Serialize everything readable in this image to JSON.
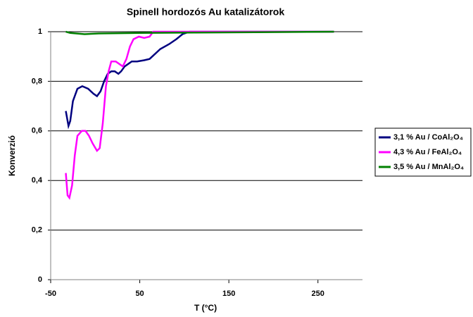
{
  "chart_data": {
    "type": "line",
    "title": "Spinell hordozós Au katalizátorok",
    "xlabel": "T (°C)",
    "ylabel": "Konverzió",
    "xlim": [
      -50,
      300
    ],
    "xticks": [
      -50,
      50,
      150,
      250
    ],
    "ylim": [
      0,
      1
    ],
    "yticks": [
      0,
      {
        "value": 0.2,
        "label": "0,2"
      },
      {
        "value": 0.4,
        "label": "0,4"
      },
      {
        "value": 0.6,
        "label": "0,6"
      },
      {
        "value": 0.8,
        "label": "0,8"
      },
      1
    ],
    "grid": true,
    "legend": "right",
    "series": [
      {
        "name": "3,1 % Au / CoAl₂O₄",
        "color": "#000080",
        "x": [
          -33,
          -30,
          -28,
          -25,
          -20,
          -14.5,
          -8,
          -2,
          2,
          6,
          10,
          14,
          18,
          22,
          26,
          29,
          33,
          37,
          41,
          47,
          55,
          61,
          67,
          73,
          83,
          91,
          98,
          106,
          130,
          209,
          268
        ],
        "values": [
          0.68,
          0.62,
          0.64,
          0.72,
          0.77,
          0.78,
          0.77,
          0.75,
          0.74,
          0.76,
          0.8,
          0.83,
          0.84,
          0.84,
          0.83,
          0.84,
          0.86,
          0.87,
          0.88,
          0.88,
          0.885,
          0.89,
          0.91,
          0.93,
          0.95,
          0.97,
          0.99,
          1.0,
          1.0,
          1.0,
          1.0
        ]
      },
      {
        "name": "4,3 % Au / FeAl₂O₄",
        "color": "#ff00ff",
        "x": [
          -33,
          -31,
          -29,
          -26,
          -23,
          -20,
          -15,
          -11,
          -7,
          -3,
          2,
          5,
          8.5,
          12,
          15,
          18,
          23,
          27,
          31,
          35,
          39,
          43,
          49,
          55,
          61,
          65,
          98,
          209,
          268
        ],
        "values": [
          0.43,
          0.34,
          0.33,
          0.38,
          0.5,
          0.58,
          0.6,
          0.6,
          0.58,
          0.55,
          0.52,
          0.53,
          0.63,
          0.78,
          0.84,
          0.88,
          0.88,
          0.87,
          0.86,
          0.89,
          0.94,
          0.97,
          0.98,
          0.975,
          0.98,
          1.0,
          1.0,
          1.0,
          1.0
        ]
      },
      {
        "name": "3,5 % Au / MnAl₂O₄",
        "color": "#008000",
        "x": [
          -33,
          -28,
          -12,
          4,
          51,
          130,
          268
        ],
        "values": [
          1.0,
          0.995,
          0.99,
          0.993,
          0.995,
          0.997,
          1.0
        ]
      }
    ]
  }
}
